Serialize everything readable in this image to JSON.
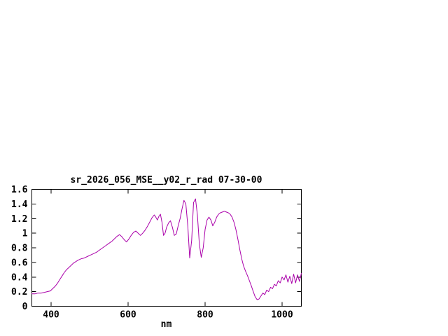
{
  "chart_data": {
    "type": "line",
    "title": "sr_2026_056_MSE__y02_r_rad 07-30-00",
    "xlabel": "nm",
    "ylabel": "",
    "xlim": [
      350,
      1050
    ],
    "ylim": [
      0,
      1.6
    ],
    "x_ticks": [
      400,
      600,
      800,
      1000
    ],
    "y_ticks": [
      0,
      0.2,
      0.4,
      0.6,
      0.8,
      1,
      1.2,
      1.4,
      1.6
    ],
    "grid": false,
    "legend_position": "none",
    "line_color": "#aa00aa",
    "border_color": "#000000",
    "series": [
      {
        "name": "sr_2026_056_MSE__y02_r_rad",
        "x": [
          350,
          358,
          366,
          374,
          382,
          390,
          398,
          404,
          410,
          416,
          422,
          428,
          434,
          440,
          446,
          452,
          458,
          464,
          470,
          478,
          486,
          494,
          502,
          510,
          518,
          526,
          534,
          542,
          550,
          558,
          566,
          572,
          578,
          584,
          590,
          596,
          602,
          608,
          614,
          620,
          626,
          632,
          638,
          644,
          650,
          656,
          662,
          668,
          672,
          676,
          680,
          684,
          688,
          692,
          696,
          700,
          705,
          710,
          715,
          720,
          725,
          730,
          735,
          740,
          745,
          750,
          755,
          760,
          765,
          770,
          775,
          780,
          785,
          790,
          795,
          800,
          805,
          810,
          815,
          820,
          825,
          830,
          835,
          840,
          845,
          850,
          855,
          860,
          865,
          870,
          875,
          880,
          885,
          890,
          895,
          900,
          905,
          910,
          915,
          920,
          925,
          930,
          935,
          940,
          945,
          950,
          955,
          960,
          965,
          970,
          975,
          980,
          985,
          990,
          995,
          1000,
          1005,
          1010,
          1015,
          1020,
          1025,
          1030,
          1035,
          1040,
          1045,
          1050
        ],
        "y": [
          0.17,
          0.17,
          0.18,
          0.18,
          0.19,
          0.2,
          0.21,
          0.24,
          0.27,
          0.31,
          0.36,
          0.41,
          0.46,
          0.5,
          0.53,
          0.56,
          0.59,
          0.61,
          0.63,
          0.65,
          0.66,
          0.68,
          0.7,
          0.72,
          0.74,
          0.77,
          0.8,
          0.83,
          0.86,
          0.89,
          0.93,
          0.96,
          0.98,
          0.95,
          0.91,
          0.88,
          0.92,
          0.97,
          1.01,
          1.03,
          1.0,
          0.97,
          1.0,
          1.04,
          1.09,
          1.15,
          1.21,
          1.25,
          1.22,
          1.18,
          1.23,
          1.26,
          1.15,
          0.97,
          1.0,
          1.08,
          1.14,
          1.17,
          1.08,
          0.97,
          0.99,
          1.1,
          1.2,
          1.33,
          1.45,
          1.4,
          1.1,
          0.66,
          0.9,
          1.42,
          1.47,
          1.25,
          0.85,
          0.67,
          0.8,
          1.05,
          1.18,
          1.22,
          1.18,
          1.1,
          1.15,
          1.22,
          1.26,
          1.28,
          1.29,
          1.3,
          1.29,
          1.28,
          1.26,
          1.22,
          1.15,
          1.05,
          0.92,
          0.78,
          0.65,
          0.55,
          0.48,
          0.42,
          0.35,
          0.28,
          0.2,
          0.13,
          0.09,
          0.1,
          0.14,
          0.18,
          0.16,
          0.22,
          0.2,
          0.26,
          0.24,
          0.3,
          0.28,
          0.35,
          0.32,
          0.4,
          0.36,
          0.43,
          0.33,
          0.41,
          0.31,
          0.44,
          0.32,
          0.43,
          0.34,
          0.45
        ]
      }
    ]
  }
}
